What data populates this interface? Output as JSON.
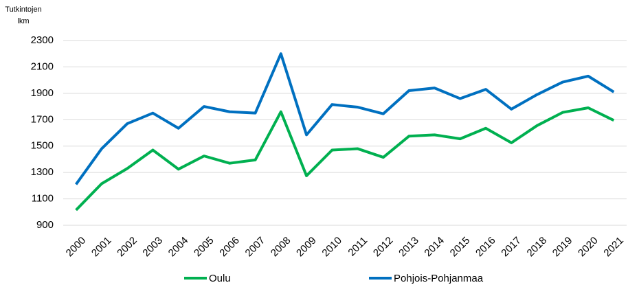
{
  "chart_data": {
    "type": "line",
    "ylabel": [
      "Tutkintojen",
      "lkm"
    ],
    "categories": [
      "2000",
      "2001",
      "2002",
      "2003",
      "2004",
      "2005",
      "2006",
      "2007",
      "2008",
      "2009",
      "2010",
      "2011",
      "2012",
      "2013",
      "2014",
      "2015",
      "2016",
      "2017",
      "2018",
      "2019",
      "2020",
      "2021"
    ],
    "series": [
      {
        "name": "Oulu",
        "color": "#00b050",
        "values": [
          1015,
          1215,
          1330,
          1470,
          1325,
          1425,
          1370,
          1395,
          1760,
          1275,
          1470,
          1480,
          1415,
          1575,
          1585,
          1555,
          1635,
          1525,
          1655,
          1755,
          1790,
          1695
        ]
      },
      {
        "name": "Pohjois-Pohjanmaa",
        "color": "#0070c0",
        "values": [
          1210,
          1480,
          1670,
          1750,
          1635,
          1800,
          1760,
          1750,
          2200,
          1585,
          1815,
          1795,
          1745,
          1920,
          1940,
          1860,
          1930,
          1780,
          1890,
          1985,
          2030,
          1910
        ]
      }
    ],
    "ylim": [
      900,
      2300
    ],
    "yticks": [
      900,
      1100,
      1300,
      1500,
      1700,
      1900,
      2100,
      2300
    ],
    "grid": true
  }
}
